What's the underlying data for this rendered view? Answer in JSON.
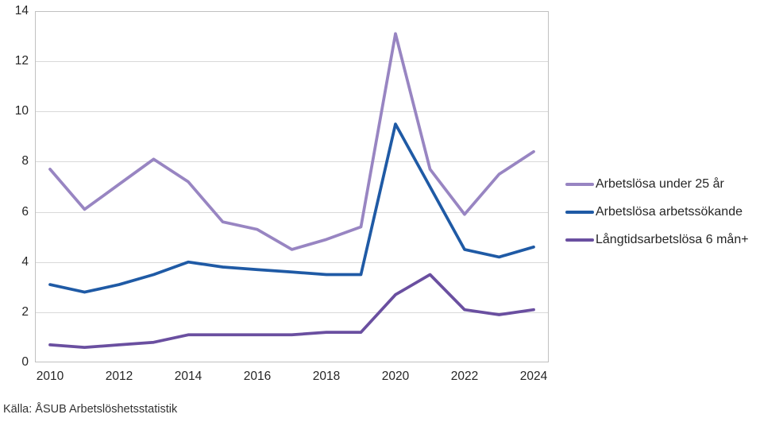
{
  "chart_data": {
    "type": "line",
    "title": "",
    "x": [
      2010,
      2011,
      2012,
      2013,
      2014,
      2015,
      2016,
      2017,
      2018,
      2019,
      2020,
      2021,
      2022,
      2023,
      2024
    ],
    "series": [
      {
        "name": "Arbetslösa under 25 år",
        "color": "#9885c2",
        "values": [
          7.7,
          6.1,
          7.1,
          8.1,
          7.2,
          5.6,
          5.3,
          4.5,
          4.9,
          5.4,
          13.1,
          7.7,
          5.9,
          7.5,
          8.4
        ]
      },
      {
        "name": "Arbetslösa arbetssökande",
        "color": "#1f5aa5",
        "values": [
          3.1,
          2.8,
          3.1,
          3.5,
          4.0,
          3.8,
          3.7,
          3.6,
          3.5,
          3.5,
          9.5,
          7.0,
          4.5,
          4.2,
          4.6
        ]
      },
      {
        "name": "Långtidsarbetslösa 6 mån+",
        "color": "#6a4fa0",
        "values": [
          0.7,
          0.6,
          0.7,
          0.8,
          1.1,
          1.1,
          1.1,
          1.1,
          1.2,
          1.2,
          2.7,
          3.5,
          2.1,
          1.9,
          2.1
        ]
      }
    ],
    "ylim": [
      0,
      14
    ],
    "ytick_step": 2,
    "yticks": [
      "0",
      "2",
      "4",
      "6",
      "8",
      "10",
      "12",
      "14"
    ],
    "xticks": [
      "2010",
      "2012",
      "2014",
      "2016",
      "2018",
      "2020",
      "2022",
      "2024"
    ],
    "grid": "horizontal",
    "legend_position": "right-middle",
    "gridline_color": "#d9d9d9",
    "plot_border_color": "#c0c0c0",
    "source": "Källa: ÅSUB Arbetslöshetsstatistik"
  }
}
